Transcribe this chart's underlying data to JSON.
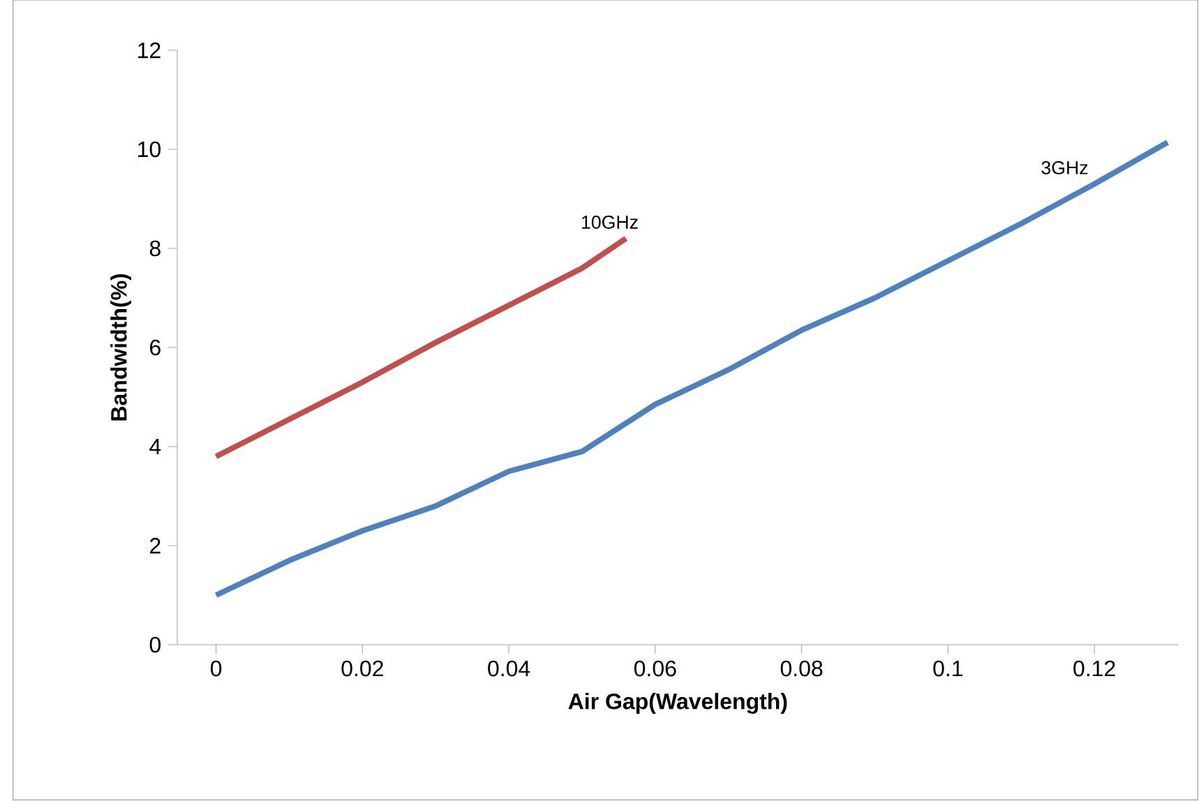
{
  "chart_data": {
    "type": "line",
    "xlabel": "Air Gap(Wavelength)",
    "ylabel": "Bandwidth(%)",
    "xlim": [
      -0.0053,
      0.1315
    ],
    "ylim": [
      0,
      12
    ],
    "xticks": [
      {
        "value": 0,
        "label": "0"
      },
      0.02,
      0.04,
      0.06,
      0.08,
      0.1,
      0.12
    ],
    "yticks": [
      0,
      2,
      4,
      6,
      8,
      10,
      12
    ],
    "grid": false,
    "legend": false,
    "marker": "none",
    "line_style": "solid",
    "series": [
      {
        "name": "10GHz",
        "color": "#c0504d",
        "x": [
          0,
          0.01,
          0.02,
          0.03,
          0.04,
          0.05,
          0.056
        ],
        "values": [
          3.8,
          4.55,
          5.3,
          6.1,
          6.85,
          7.6,
          8.2
        ]
      },
      {
        "name": "3GHz",
        "color": "#4f81bd",
        "x": [
          0,
          0.01,
          0.02,
          0.03,
          0.04,
          0.05,
          0.06,
          0.07,
          0.08,
          0.09,
          0.1,
          0.11,
          0.12,
          0.13
        ],
        "values": [
          1.0,
          1.7,
          2.3,
          2.8,
          3.5,
          3.9,
          4.85,
          5.55,
          6.35,
          7.0,
          7.75,
          8.5,
          9.3,
          10.14
        ]
      }
    ]
  }
}
